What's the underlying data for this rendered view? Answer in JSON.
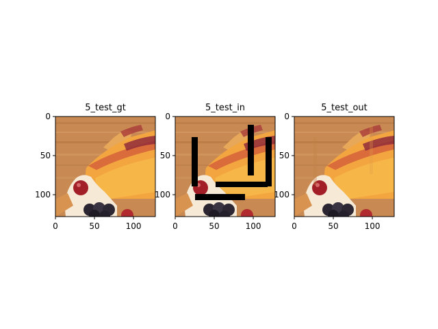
{
  "figure": {
    "panels": [
      {
        "title": "5_test_gt",
        "xticks": [
          "0",
          "50",
          "100"
        ],
        "yticks": [
          "0",
          "50",
          "100"
        ],
        "has_mask": false
      },
      {
        "title": "5_test_in",
        "xticks": [
          "0",
          "50",
          "100"
        ],
        "yticks": [
          "0",
          "50",
          "100"
        ],
        "has_mask": true
      },
      {
        "title": "5_test_out",
        "xticks": [
          "0",
          "50",
          "100"
        ],
        "yticks": [
          "0",
          "50",
          "100"
        ],
        "has_mask": false
      }
    ],
    "image_description_icon": "fruit-tart-photo"
  }
}
